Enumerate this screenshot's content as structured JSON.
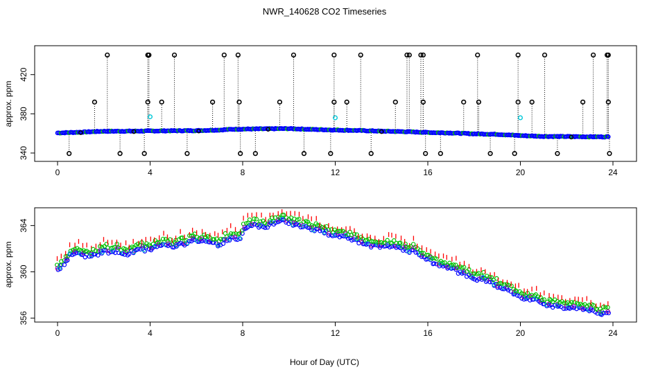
{
  "title": "NWR_140628  CO2 Timeseries",
  "xlabel": "Hour of Day (UTC)",
  "chart_data": [
    {
      "type": "scatter",
      "panel": "top",
      "ylabel": "approx. ppm",
      "xlim": [
        0,
        24
      ],
      "ylim": [
        337,
        441
      ],
      "xticks": [
        0,
        4,
        8,
        12,
        16,
        20,
        24
      ],
      "yticks": [
        340,
        380,
        420
      ],
      "grid": false,
      "baseline": {
        "hours": [
          0,
          1,
          2,
          3,
          4,
          5,
          6,
          7,
          7.5,
          8,
          9,
          10,
          11,
          12,
          13,
          14,
          15,
          16,
          17,
          18,
          19,
          20,
          20.5,
          21,
          22,
          23,
          23.8
        ],
        "ppm": [
          360.5,
          361.3,
          362.2,
          362.3,
          362.5,
          362.7,
          362.9,
          363.5,
          364.2,
          364.4,
          364.7,
          364.9,
          364.1,
          363.5,
          363.0,
          362.3,
          361.8,
          361.0,
          360.5,
          359.6,
          359.1,
          357.8,
          357.4,
          357.0,
          356.8,
          356.6,
          356.5
        ]
      },
      "spikes_high": [
        2.15,
        3.9,
        3.95,
        5.05,
        7.2,
        7.8,
        10.2,
        11.95,
        13.1,
        15.1,
        15.2,
        15.7,
        15.8,
        18.15,
        19.9,
        21.05,
        23.15,
        23.75,
        23.8
      ],
      "spikes_mid": [
        1.6,
        3.9,
        4.5,
        6.7,
        7.85,
        9.6,
        11.95,
        12.5,
        14.6,
        15.8,
        17.55,
        18.2,
        19.9,
        20.5,
        22.7,
        23.8
      ],
      "spikes_low": [
        0.5,
        2.7,
        3.75,
        5.6,
        7.9,
        8.55,
        10.65,
        11.8,
        13.55,
        15.9,
        16.55,
        18.7,
        19.75,
        21.6,
        23.85
      ],
      "cyan_points": [
        {
          "x": 4.0,
          "y": 377
        },
        {
          "x": 12.0,
          "y": 376
        },
        {
          "x": 20.0,
          "y": 376
        }
      ]
    },
    {
      "type": "scatter",
      "panel": "bottom",
      "ylabel": "approx. ppm",
      "xlim": [
        0,
        24
      ],
      "ylim": [
        355.8,
        365.5
      ],
      "xticks": [
        0,
        4,
        8,
        12,
        16,
        20,
        24
      ],
      "yticks": [
        356,
        360,
        364
      ],
      "grid": false,
      "series": [
        {
          "marker": "circle",
          "color": "#0000ff",
          "offset": 0
        },
        {
          "marker": "circle",
          "color": "#00c000",
          "offset": 0.45
        },
        {
          "marker": "tick",
          "color": "#ff0000",
          "offset": 0.85
        },
        {
          "marker": "circle",
          "color": "#a000a0",
          "offset": 0.2
        },
        {
          "marker": "circle",
          "color": "#00b8c8",
          "offset": 0.1
        }
      ],
      "curve": {
        "hours": [
          0,
          0.2,
          0.4,
          0.6,
          0.8,
          1.0,
          1.5,
          2.0,
          2.5,
          3.0,
          3.5,
          4.0,
          4.5,
          5.0,
          5.5,
          6.0,
          6.5,
          7.0,
          7.5,
          7.8,
          8.0,
          8.5,
          9.0,
          9.5,
          9.8,
          10.0,
          10.5,
          11.0,
          11.5,
          12.0,
          12.5,
          13.0,
          13.5,
          14.0,
          14.5,
          15.0,
          15.5,
          15.8,
          16.0,
          16.5,
          17.0,
          17.5,
          18.0,
          18.5,
          19.0,
          19.5,
          20.0,
          20.5,
          21.0,
          21.5,
          22.0,
          22.5,
          23.0,
          23.5,
          23.8
        ],
        "ppm": [
          360.1,
          360.6,
          361.0,
          361.6,
          361.6,
          361.4,
          361.5,
          361.7,
          361.8,
          361.6,
          361.9,
          362.0,
          362.3,
          362.2,
          362.4,
          362.7,
          362.5,
          362.3,
          363.0,
          362.6,
          363.6,
          364.0,
          363.9,
          364.3,
          364.6,
          364.2,
          363.9,
          363.7,
          363.5,
          363.1,
          362.9,
          362.6,
          362.2,
          362.1,
          362.1,
          361.9,
          361.7,
          361.4,
          361.0,
          360.6,
          360.3,
          359.8,
          359.4,
          359.3,
          358.8,
          358.3,
          357.8,
          357.7,
          357.3,
          357.0,
          356.9,
          356.8,
          356.7,
          356.4,
          356.3
        ]
      }
    }
  ]
}
